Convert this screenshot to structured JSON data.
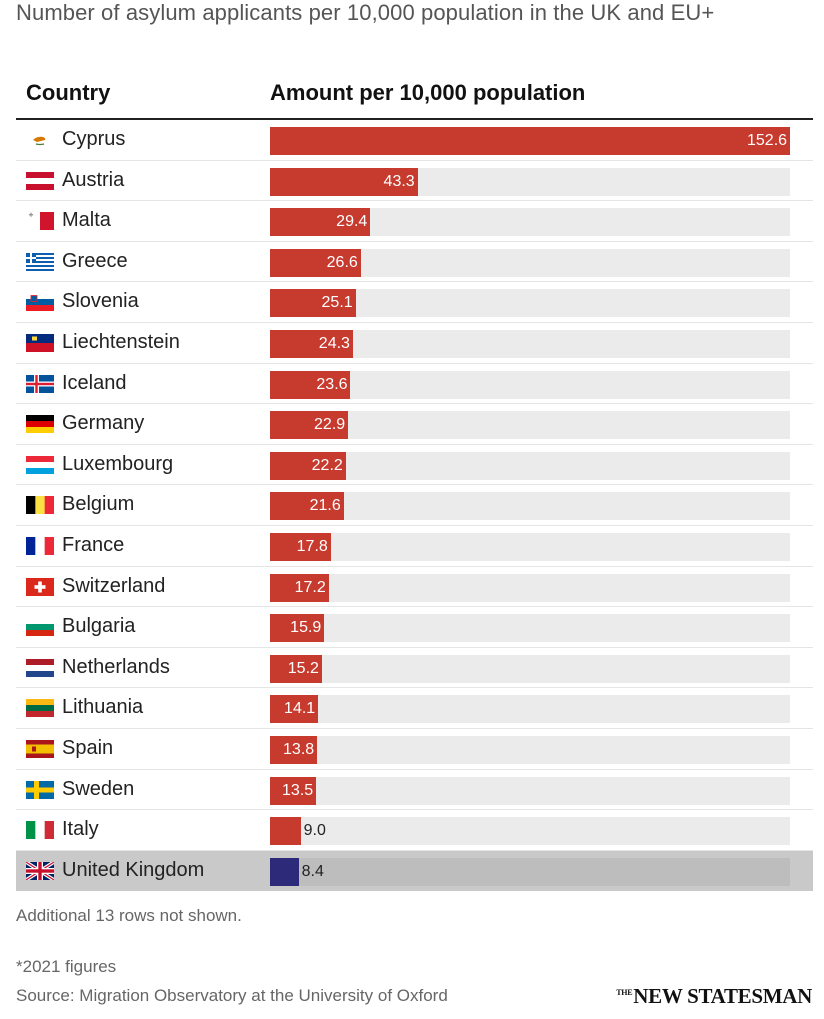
{
  "title": "Number of asylum applicants per 10,000 population in the UK and EU+",
  "header": {
    "country": "Country",
    "amount": "Amount per 10,000 population"
  },
  "colors": {
    "bar": "#c73a2e",
    "highlight_bar": "#2e2a7a",
    "track": "#ebebeb",
    "highlight_row": "#c9c9c9"
  },
  "chart_data": {
    "type": "bar",
    "orientation": "horizontal",
    "categories": [
      "Cyprus",
      "Austria",
      "Malta",
      "Greece",
      "Slovenia",
      "Liechtenstein",
      "Iceland",
      "Germany",
      "Luxembourg",
      "Belgium",
      "France",
      "Switzerland",
      "Bulgaria",
      "Netherlands",
      "Lithuania",
      "Spain",
      "Sweden",
      "Italy",
      "United Kingdom"
    ],
    "values": [
      152.6,
      43.3,
      29.4,
      26.6,
      25.1,
      24.3,
      23.6,
      22.9,
      22.2,
      21.6,
      17.8,
      17.2,
      15.9,
      15.2,
      14.1,
      13.8,
      13.5,
      9.0,
      8.4
    ],
    "value_labels": [
      "152.6",
      "43.3",
      "29.4",
      "26.6",
      "25.1",
      "24.3",
      "23.6",
      "22.9",
      "22.2",
      "21.6",
      "17.8",
      "17.2",
      "15.9",
      "15.2",
      "14.1",
      "13.8",
      "13.5",
      "9.0",
      "8.4"
    ],
    "flag_icons": [
      "cyprus-flag-icon",
      "austria-flag-icon",
      "malta-flag-icon",
      "greece-flag-icon",
      "slovenia-flag-icon",
      "liechtenstein-flag-icon",
      "iceland-flag-icon",
      "germany-flag-icon",
      "luxembourg-flag-icon",
      "belgium-flag-icon",
      "france-flag-icon",
      "switzerland-flag-icon",
      "bulgaria-flag-icon",
      "netherlands-flag-icon",
      "lithuania-flag-icon",
      "spain-flag-icon",
      "sweden-flag-icon",
      "italy-flag-icon",
      "united-kingdom-flag-icon"
    ],
    "highlight": "United Kingdom",
    "xlim": [
      0,
      152.6
    ]
  },
  "footer": {
    "more_rows": "Additional 13 rows not shown.",
    "note": "*2021 figures",
    "source": "Source: Migration Observatory at the University of Oxford",
    "logo_prefix": "THE",
    "logo": "NEW STATESMAN"
  }
}
